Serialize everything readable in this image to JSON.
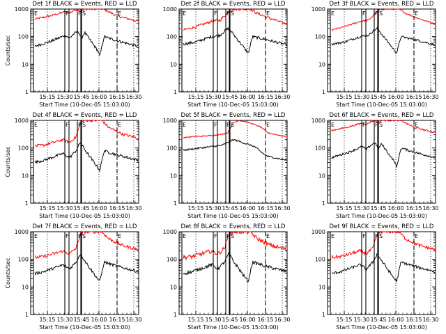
{
  "figure": {
    "background": "#ffffff"
  },
  "chart_data": [
    {
      "type": "line",
      "title": "Det 1f BLACK = Events, RED = LLD",
      "xlabel": "Start Time (10-Dec-05 15:03:00)",
      "ylabel": "Counts/sec",
      "yscale": "log",
      "ylim": [
        1,
        1000
      ],
      "xtick_labels": [
        "15:15",
        "15:30",
        "15:45",
        "16:00",
        "16:15",
        "16:30"
      ],
      "ytick_labels": [
        "1",
        "10",
        "100",
        "1000"
      ],
      "markers": [
        {
          "label": "E",
          "pos": "left"
        },
        {
          "label": "F",
          "pos": "f1"
        },
        {
          "label": "F",
          "pos": "f2"
        },
        {
          "label": "S",
          "pos": "s"
        },
        {
          "label": "E",
          "pos": "e2"
        }
      ],
      "series": [
        {
          "color": "#ff0000",
          "shape": "r1"
        },
        {
          "color": "#000000",
          "shape": "b1"
        }
      ]
    },
    {
      "type": "line",
      "title": "Det 2f BLACK = Events, RED = LLD",
      "xlabel": "Start Time (10-Dec-05 15:03:00)",
      "ylabel": "",
      "yscale": "log",
      "ylim": [
        1,
        1000
      ],
      "xtick_labels": [
        "15:15",
        "15:30",
        "15:45",
        "16:00",
        "16:15",
        "16:30"
      ],
      "ytick_labels": [
        "1",
        "10",
        "100",
        "1000"
      ],
      "markers": [
        {
          "label": "E",
          "pos": "left"
        },
        {
          "label": "F",
          "pos": "f1"
        },
        {
          "label": "F",
          "pos": "f2"
        },
        {
          "label": "S",
          "pos": "s"
        },
        {
          "label": "E",
          "pos": "e2"
        }
      ],
      "series": [
        {
          "color": "#ff0000",
          "shape": "r2"
        },
        {
          "color": "#000000",
          "shape": "b2"
        }
      ]
    },
    {
      "type": "line",
      "title": "Det 3f BLACK = Events, RED = LLD",
      "xlabel": "Start Time (10-Dec-05 15:03:00)",
      "ylabel": "",
      "yscale": "log",
      "ylim": [
        1,
        1000
      ],
      "xtick_labels": [
        "15:15",
        "15:30",
        "15:45",
        "16:00",
        "16:15",
        "16:30"
      ],
      "ytick_labels": [
        "1",
        "10",
        "100",
        "1000"
      ],
      "markers": [
        {
          "label": "E",
          "pos": "left"
        },
        {
          "label": "F",
          "pos": "f1"
        },
        {
          "label": "F",
          "pos": "f2"
        },
        {
          "label": "S",
          "pos": "s"
        },
        {
          "label": "E",
          "pos": "e2"
        }
      ],
      "series": [
        {
          "color": "#ff0000",
          "shape": "r3"
        },
        {
          "color": "#000000",
          "shape": "b3"
        }
      ]
    },
    {
      "type": "line",
      "title": "Det 4f BLACK = Events, RED = LLD",
      "xlabel": "Start Time (10-Dec-05 15:03:00)",
      "ylabel": "Counts/sec",
      "yscale": "log",
      "ylim": [
        1,
        1000
      ],
      "xtick_labels": [
        "15:15",
        "15:30",
        "15:45",
        "16:00",
        "16:15",
        "16:30"
      ],
      "ytick_labels": [
        "1",
        "10",
        "100",
        "1000"
      ],
      "markers": [
        {
          "label": "E",
          "pos": "left"
        },
        {
          "label": "F",
          "pos": "f1"
        },
        {
          "label": "F",
          "pos": "f2"
        },
        {
          "label": "S",
          "pos": "s"
        },
        {
          "label": "E",
          "pos": "e2"
        }
      ],
      "series": [
        {
          "color": "#ff0000",
          "shape": "r4"
        },
        {
          "color": "#000000",
          "shape": "b4"
        }
      ]
    },
    {
      "type": "line",
      "title": "Det 5f BLACK = Events, RED = LLD",
      "xlabel": "Start Time (10-Dec-05 15:03:00)",
      "ylabel": "",
      "yscale": "log",
      "ylim": [
        1,
        1000
      ],
      "xtick_labels": [
        "15:15",
        "15:30",
        "15:45",
        "16:00",
        "16:15",
        "16:30"
      ],
      "ytick_labels": [
        "1",
        "10",
        "100",
        "1000"
      ],
      "markers": [
        {
          "label": "E",
          "pos": "left"
        },
        {
          "label": "F",
          "pos": "f1"
        },
        {
          "label": "F",
          "pos": "f2"
        },
        {
          "label": "S",
          "pos": "s"
        },
        {
          "label": "E",
          "pos": "e2"
        }
      ],
      "series": [
        {
          "color": "#ff0000",
          "shape": "r5"
        },
        {
          "color": "#000000",
          "shape": "b5"
        }
      ]
    },
    {
      "type": "line",
      "title": "Det 6f BLACK = Events, RED = LLD",
      "xlabel": "Start Time (10-Dec-05 15:03:00)",
      "ylabel": "",
      "yscale": "log",
      "ylim": [
        1,
        1000
      ],
      "xtick_labels": [
        "15:15",
        "15:30",
        "15:45",
        "16:00",
        "16:15",
        "16:30"
      ],
      "ytick_labels": [
        "1",
        "10",
        "100",
        "1000"
      ],
      "markers": [
        {
          "label": "E",
          "pos": "left"
        },
        {
          "label": "F",
          "pos": "f1"
        },
        {
          "label": "F",
          "pos": "f2"
        },
        {
          "label": "S",
          "pos": "s"
        },
        {
          "label": "E",
          "pos": "e2"
        }
      ],
      "series": [
        {
          "color": "#ff0000",
          "shape": "r6"
        },
        {
          "color": "#000000",
          "shape": "b6"
        }
      ]
    },
    {
      "type": "line",
      "title": "Det 7f BLACK = Events, RED = LLD",
      "xlabel": "Start Time (10-Dec-05 15:03:00)",
      "ylabel": "Counts/sec",
      "yscale": "log",
      "ylim": [
        1,
        1000
      ],
      "xtick_labels": [
        "15:15",
        "15:30",
        "15:45",
        "16:00",
        "16:15",
        "16:30"
      ],
      "ytick_labels": [
        "1",
        "10",
        "100",
        "1000"
      ],
      "markers": [
        {
          "label": "E",
          "pos": "left"
        },
        {
          "label": "F",
          "pos": "f1"
        },
        {
          "label": "F",
          "pos": "f2"
        },
        {
          "label": "S",
          "pos": "s"
        },
        {
          "label": "E",
          "pos": "e2"
        }
      ],
      "series": [
        {
          "color": "#ff0000",
          "shape": "r7"
        },
        {
          "color": "#000000",
          "shape": "b7"
        }
      ]
    },
    {
      "type": "line",
      "title": "Det 8f BLACK = Events, RED = LLD",
      "xlabel": "Start Time (10-Dec-05 15:03:00)",
      "ylabel": "",
      "yscale": "log",
      "ylim": [
        1,
        1000
      ],
      "xtick_labels": [
        "15:15",
        "15:30",
        "15:45",
        "16:00",
        "16:15",
        "16:30"
      ],
      "ytick_labels": [
        "1",
        "10",
        "100",
        "1000"
      ],
      "markers": [
        {
          "label": "E",
          "pos": "left"
        },
        {
          "label": "F",
          "pos": "f1"
        },
        {
          "label": "F",
          "pos": "f2"
        },
        {
          "label": "S",
          "pos": "s"
        },
        {
          "label": "E",
          "pos": "e2"
        }
      ],
      "series": [
        {
          "color": "#ff0000",
          "shape": "r8"
        },
        {
          "color": "#000000",
          "shape": "b8"
        }
      ]
    },
    {
      "type": "line",
      "title": "Det 9f BLACK = Events, RED = LLD",
      "xlabel": "Start Time (10-Dec-05 15:03:00)",
      "ylabel": "",
      "yscale": "log",
      "ylim": [
        1,
        1000
      ],
      "xtick_labels": [
        "15:15",
        "15:30",
        "15:45",
        "16:00",
        "16:15",
        "16:30"
      ],
      "ytick_labels": [
        "1",
        "10",
        "100",
        "1000"
      ],
      "markers": [
        {
          "label": "E",
          "pos": "left"
        },
        {
          "label": "F",
          "pos": "f1"
        },
        {
          "label": "F",
          "pos": "f2"
        },
        {
          "label": "S",
          "pos": "s"
        },
        {
          "label": "E",
          "pos": "e2"
        }
      ],
      "series": [
        {
          "color": "#ff0000",
          "shape": "r9"
        },
        {
          "color": "#000000",
          "shape": "b9"
        }
      ]
    }
  ]
}
